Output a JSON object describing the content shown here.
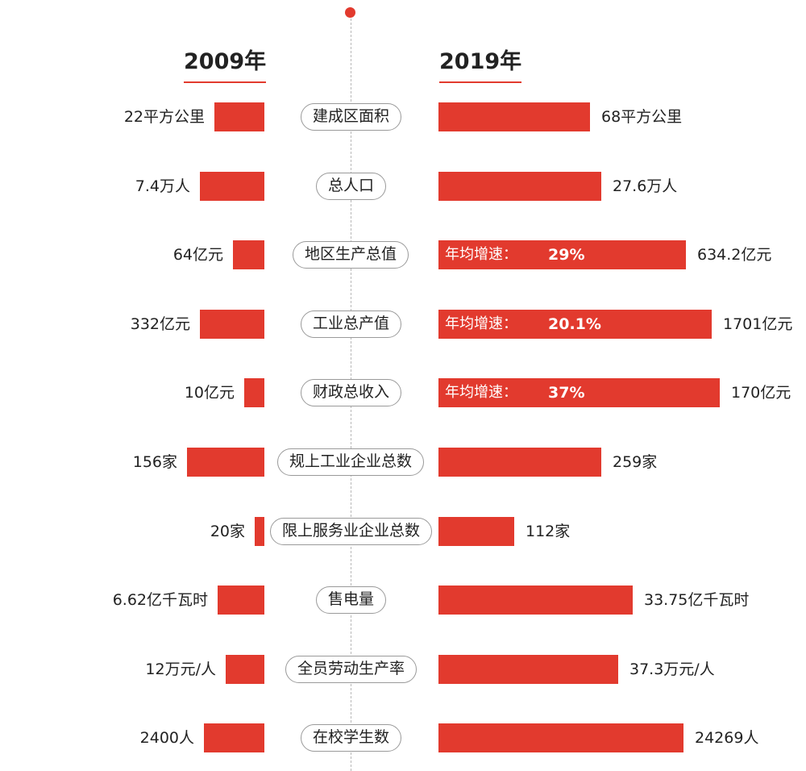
{
  "chart_data": {
    "type": "bar",
    "layout": "butterfly",
    "headers": {
      "left": "2009年",
      "right": "2019年"
    },
    "rate_label": "年均增速：",
    "rows": [
      {
        "category": "建成区面积",
        "left_text": "22平方公里",
        "right_text": "68平方公里",
        "left_value": 22,
        "right_value": 68,
        "growth_rate": null
      },
      {
        "category": "总人口",
        "left_text": "7.4万人",
        "right_text": "27.6万人",
        "left_value": 7.4,
        "right_value": 27.6,
        "growth_rate": null
      },
      {
        "category": "地区生产总值",
        "left_text": "64亿元",
        "right_text": "634.2亿元",
        "left_value": 64,
        "right_value": 634.2,
        "growth_rate": "29%"
      },
      {
        "category": "工业总产值",
        "left_text": "332亿元",
        "right_text": "1701亿元",
        "left_value": 332,
        "right_value": 1701,
        "growth_rate": "20.1%"
      },
      {
        "category": "财政总收入",
        "left_text": "10亿元",
        "right_text": "170亿元",
        "left_value": 10,
        "right_value": 170,
        "growth_rate": "37%"
      },
      {
        "category": "规上工业企业总数",
        "left_text": "156家",
        "right_text": "259家",
        "left_value": 156,
        "right_value": 259,
        "growth_rate": null
      },
      {
        "category": "限上服务业企业总数",
        "left_text": "20家",
        "right_text": "112家",
        "left_value": 20,
        "right_value": 112,
        "growth_rate": null
      },
      {
        "category": "售电量",
        "left_text": "6.62亿千瓦时",
        "right_text": "33.75亿千瓦时",
        "left_value": 6.62,
        "right_value": 33.75,
        "growth_rate": null
      },
      {
        "category": "全员劳动生产率",
        "left_text": "12万元/人",
        "right_text": "37.3万元/人",
        "left_value": 12,
        "right_value": 37.3,
        "growth_rate": null
      },
      {
        "category": "在校学生数",
        "left_text": "2400人",
        "right_text": "24269人",
        "left_value": 2400,
        "right_value": 24269,
        "growth_rate": null
      }
    ],
    "colors": {
      "bar": "#e23a2e",
      "header_underline": "#e23a2e",
      "center_line": "#b8b8b8",
      "pill_border": "#9a9a9a"
    }
  }
}
